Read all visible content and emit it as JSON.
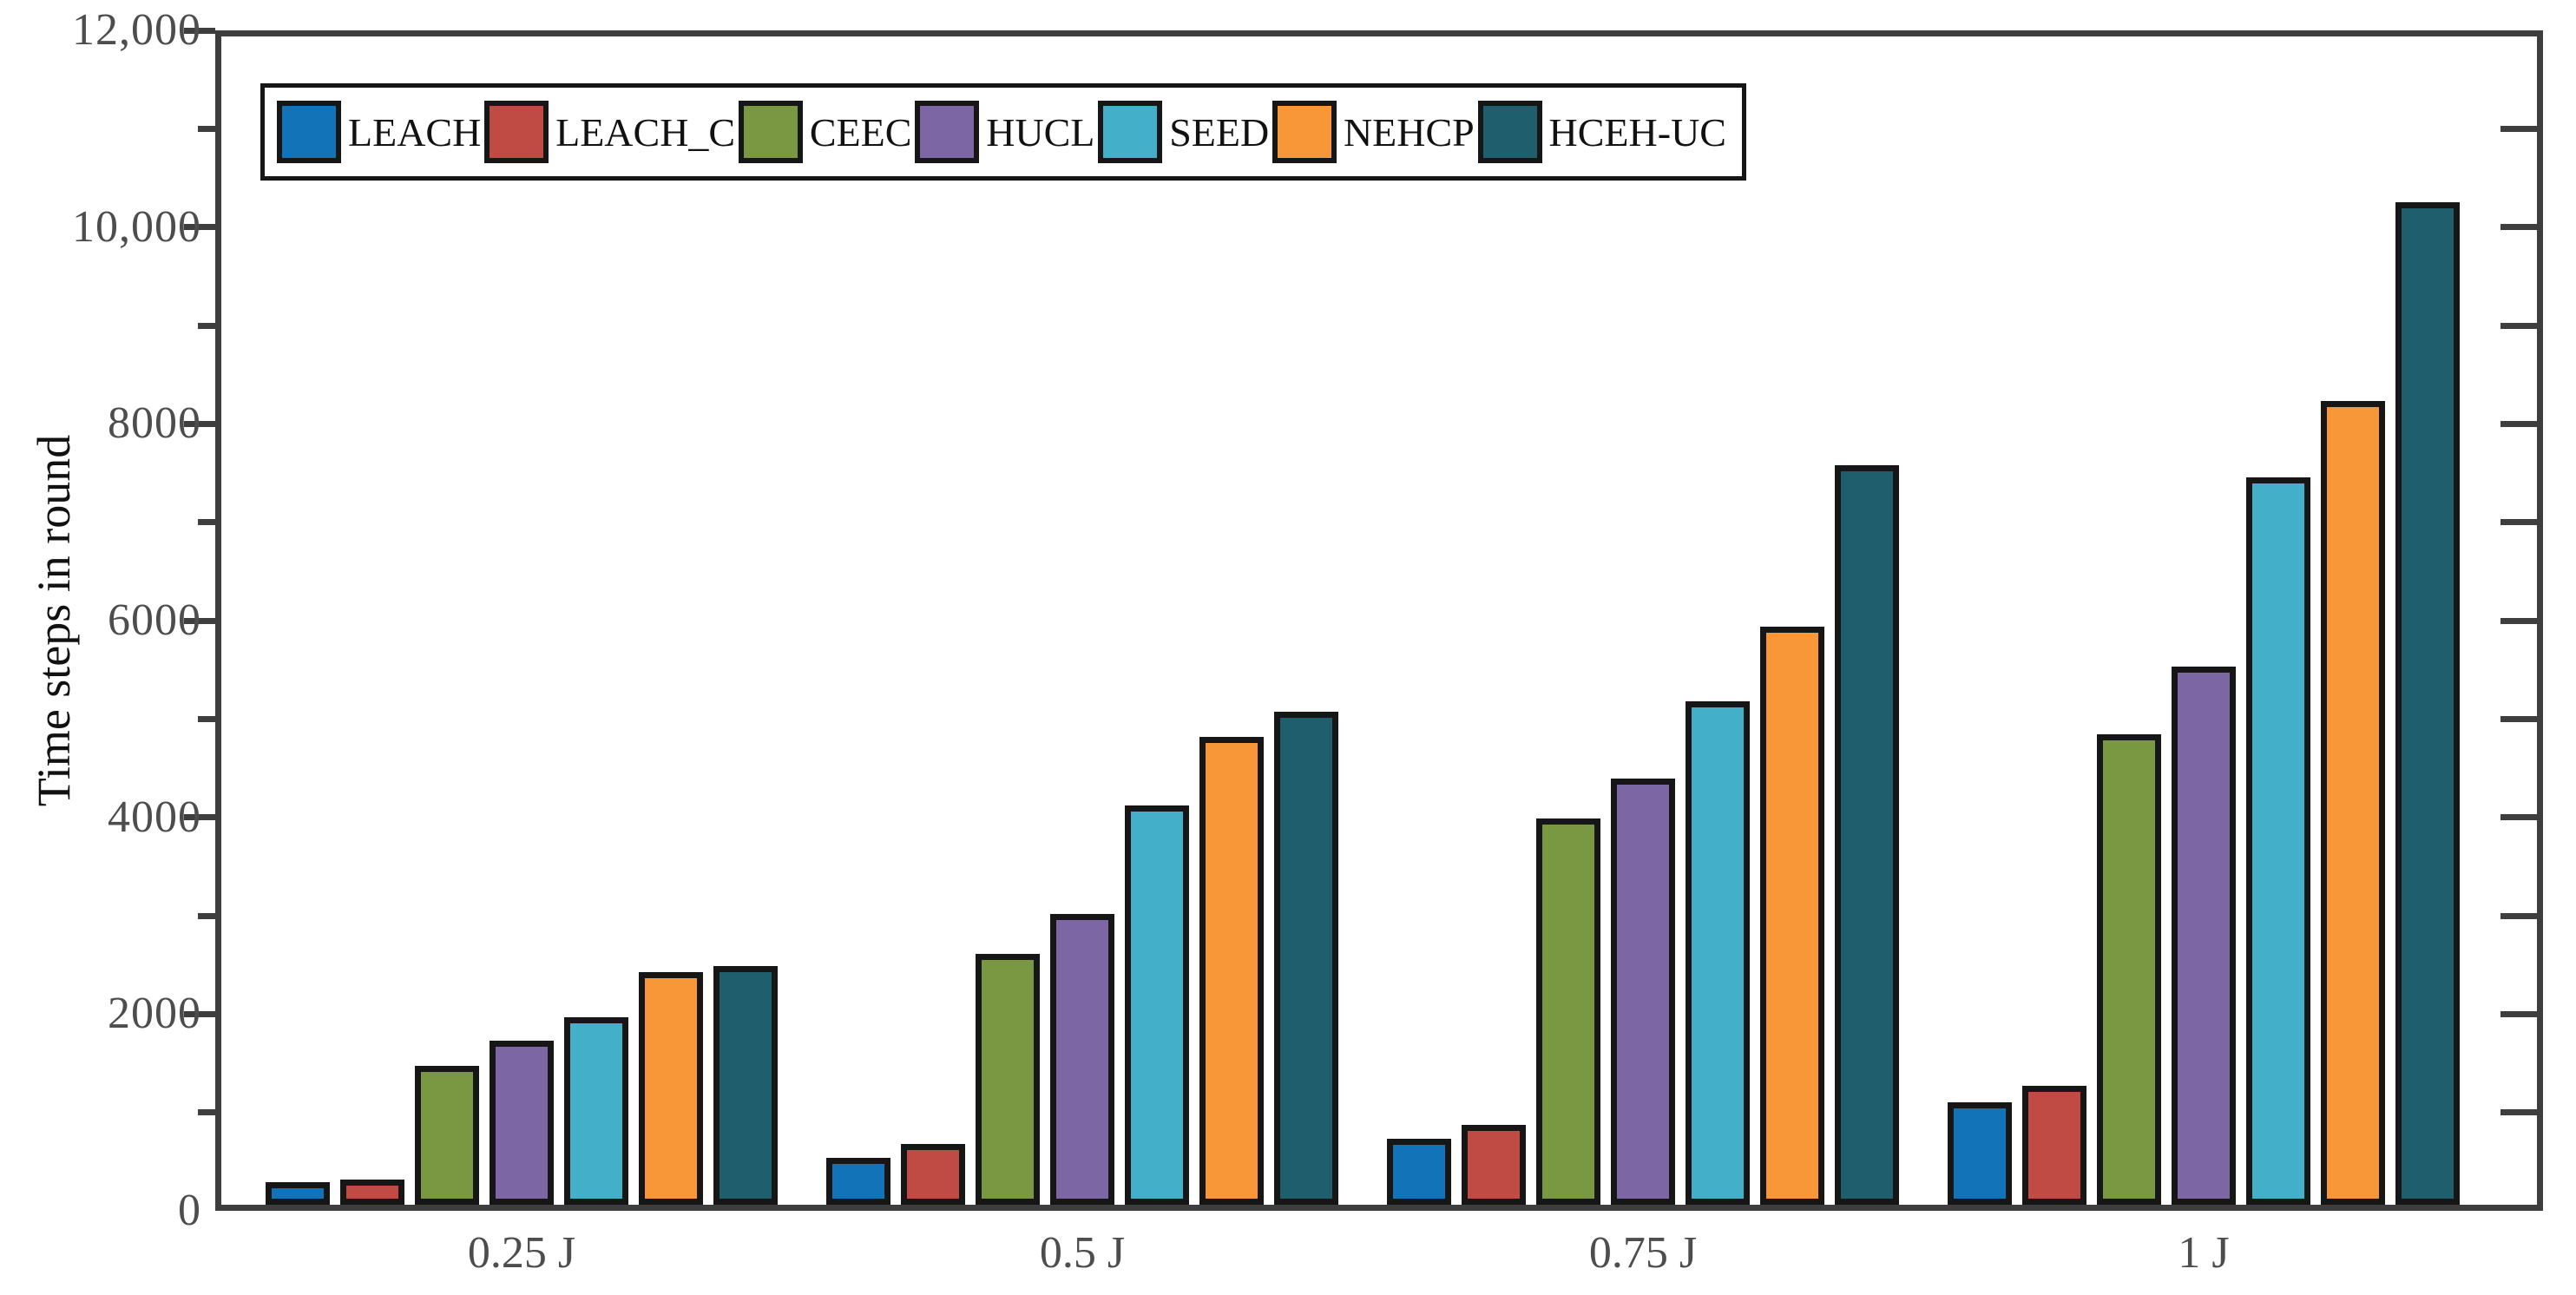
{
  "figure": {
    "background": "#ffffff",
    "frame_color": "#3e3e3e",
    "bar_border_color": "#161616",
    "tick_label_color": "#4d4d4d"
  },
  "chart_data": {
    "type": "bar",
    "title": "",
    "xlabel": "",
    "ylabel": "Time steps in round",
    "categories": [
      "0.25 J",
      "0.5 J",
      "0.75 J",
      "1 J"
    ],
    "ylim": [
      0,
      12000
    ],
    "y_major_step": 2000,
    "y_minor_step": 1000,
    "grid": false,
    "legend_position": "top-left-inside",
    "y_ticks": [
      {
        "value": 0,
        "label": "0"
      },
      {
        "value": 2000,
        "label": "2000"
      },
      {
        "value": 4000,
        "label": "4000"
      },
      {
        "value": 6000,
        "label": "6000"
      },
      {
        "value": 8000,
        "label": "8000"
      },
      {
        "value": 10000,
        "label": "10,000"
      },
      {
        "value": 12000,
        "label": "12,000"
      }
    ],
    "series": [
      {
        "name": "LEACH",
        "color": "#1273b9",
        "values": [
          290,
          540,
          730,
          1100
        ]
      },
      {
        "name": "LEACH_C",
        "color": "#c04b44",
        "values": [
          320,
          680,
          870,
          1270
        ]
      },
      {
        "name": "CEEC",
        "color": "#7a9841",
        "values": [
          1470,
          2610,
          3990,
          4840
        ]
      },
      {
        "name": "HUCL",
        "color": "#7c66a3",
        "values": [
          1730,
          3020,
          4390,
          5530
        ]
      },
      {
        "name": "SEED",
        "color": "#43afc8",
        "values": [
          1970,
          4120,
          5180,
          7460
        ]
      },
      {
        "name": "NEHCP",
        "color": "#f89737",
        "values": [
          2430,
          4820,
          5940,
          8230
        ]
      },
      {
        "name": "HCEH-UC",
        "color": "#1f5e6d",
        "values": [
          2490,
          5070,
          7580,
          10250
        ]
      }
    ]
  },
  "legend": {
    "items": [
      {
        "label": "LEACH",
        "color": "#1273b9"
      },
      {
        "label": "LEACH_C",
        "color": "#c04b44"
      },
      {
        "label": "CEEC",
        "color": "#7a9841"
      },
      {
        "label": "HUCL",
        "color": "#7c66a3"
      },
      {
        "label": "SEED",
        "color": "#43afc8"
      },
      {
        "label": "NEHCP",
        "color": "#f89737"
      },
      {
        "label": "HCEH-UC",
        "color": "#1f5e6d"
      }
    ]
  }
}
